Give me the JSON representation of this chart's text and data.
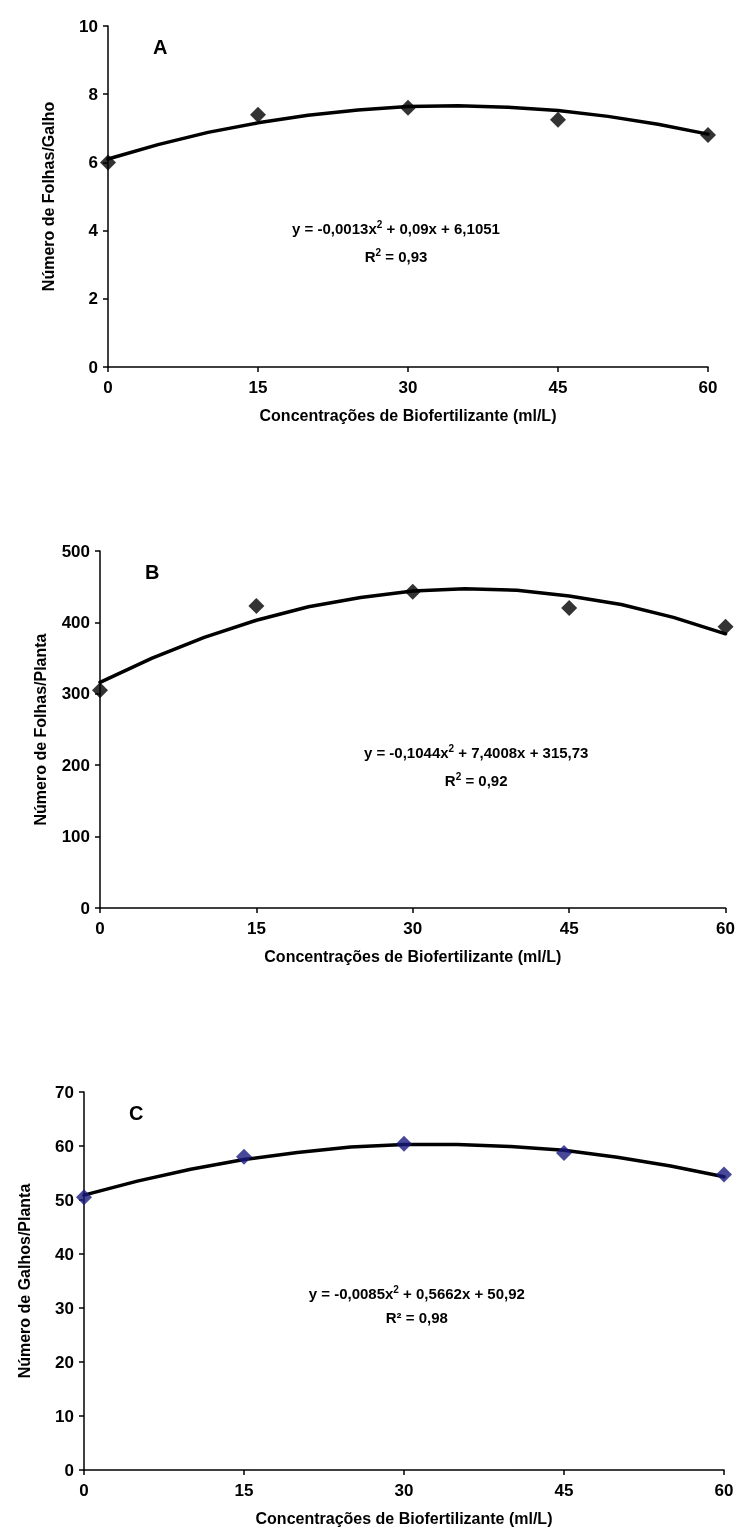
{
  "chart_data": [
    {
      "type": "scatter",
      "title": "A",
      "xlabel": "Concentrações de Biofertilizante (ml/L)",
      "ylabel": "Número de Folhas/Galho",
      "xlim": [
        0,
        60
      ],
      "xticks": [
        0,
        15,
        30,
        45,
        60
      ],
      "ylim": [
        0,
        10
      ],
      "yticks": [
        0,
        2,
        4,
        6,
        8,
        10
      ],
      "annotations": [
        "y = -0,0013x$^{2}$ + 0,09x + 6,1051",
        "R$^{2}$ = 0,93"
      ],
      "series": [
        {
          "type": "line",
          "marker": "none",
          "line_style": "solid",
          "color": "#000000",
          "x": [
            0,
            5,
            10,
            15,
            20,
            25,
            30,
            35,
            40,
            45,
            50,
            55,
            60
          ],
          "values": [
            6.1,
            6.52,
            6.88,
            7.16,
            7.38,
            7.54,
            7.64,
            7.66,
            7.62,
            7.52,
            7.35,
            7.12,
            6.83
          ]
        },
        {
          "marker": "diamond",
          "color": "#000000",
          "x": [
            0,
            15,
            30,
            45,
            60
          ],
          "values": [
            6.0,
            7.4,
            7.6,
            7.25,
            6.8
          ]
        }
      ]
    },
    {
      "type": "scatter",
      "title": "B",
      "xlabel": "Concentrações de Biofertilizante (ml/L)",
      "ylabel": "Número de Folhas/Planta",
      "xlim": [
        0,
        60
      ],
      "xticks": [
        0,
        15,
        30,
        45,
        60
      ],
      "ylim": [
        0,
        500
      ],
      "yticks": [
        0,
        100,
        200,
        300,
        400,
        500
      ],
      "annotations": [
        "y = -0,1044x$^{2}$ + 7,4008x + 315,73",
        "R$^{2}$ = 0,92"
      ],
      "series": [
        {
          "type": "line",
          "marker": "none",
          "line_style": "solid",
          "color": "#000000",
          "x": [
            0,
            5,
            10,
            15,
            20,
            25,
            30,
            35,
            40,
            45,
            50,
            55,
            60
          ],
          "values": [
            316,
            350,
            379,
            403,
            422,
            435,
            444,
            447,
            445,
            437,
            425,
            407,
            384
          ]
        },
        {
          "marker": "diamond",
          "color": "#000000",
          "x": [
            0,
            15,
            30,
            45,
            60
          ],
          "values": [
            305,
            423,
            443,
            420,
            394
          ]
        }
      ]
    },
    {
      "type": "scatter",
      "title": "C",
      "xlabel": "Concentrações de Biofertilizante (ml/L)",
      "ylabel": "Número de Galhos/Planta",
      "xlim": [
        0,
        60
      ],
      "xticks": [
        0,
        15,
        30,
        45,
        60
      ],
      "ylim": [
        0,
        70
      ],
      "yticks": [
        0,
        10,
        20,
        30,
        40,
        50,
        60,
        70
      ],
      "annotations": [
        "y = -0,0085x$^{2}$ + 0,5662x + 50,92",
        "R² = 0,98"
      ],
      "series": [
        {
          "type": "line",
          "marker": "none",
          "line_style": "solid",
          "color": "#000000",
          "x": [
            0,
            5,
            10,
            15,
            20,
            25,
            30,
            35,
            40,
            45,
            50,
            55,
            60
          ],
          "values": [
            50.9,
            53.5,
            55.7,
            57.5,
            58.8,
            59.8,
            60.3,
            60.3,
            59.9,
            59.2,
            57.9,
            56.3,
            54.3
          ]
        },
        {
          "marker": "diamond",
          "color": "#1a1a80",
          "x": [
            0,
            15,
            30,
            45,
            60
          ],
          "values": [
            50.5,
            58.0,
            60.4,
            58.7,
            54.7
          ]
        }
      ]
    }
  ]
}
